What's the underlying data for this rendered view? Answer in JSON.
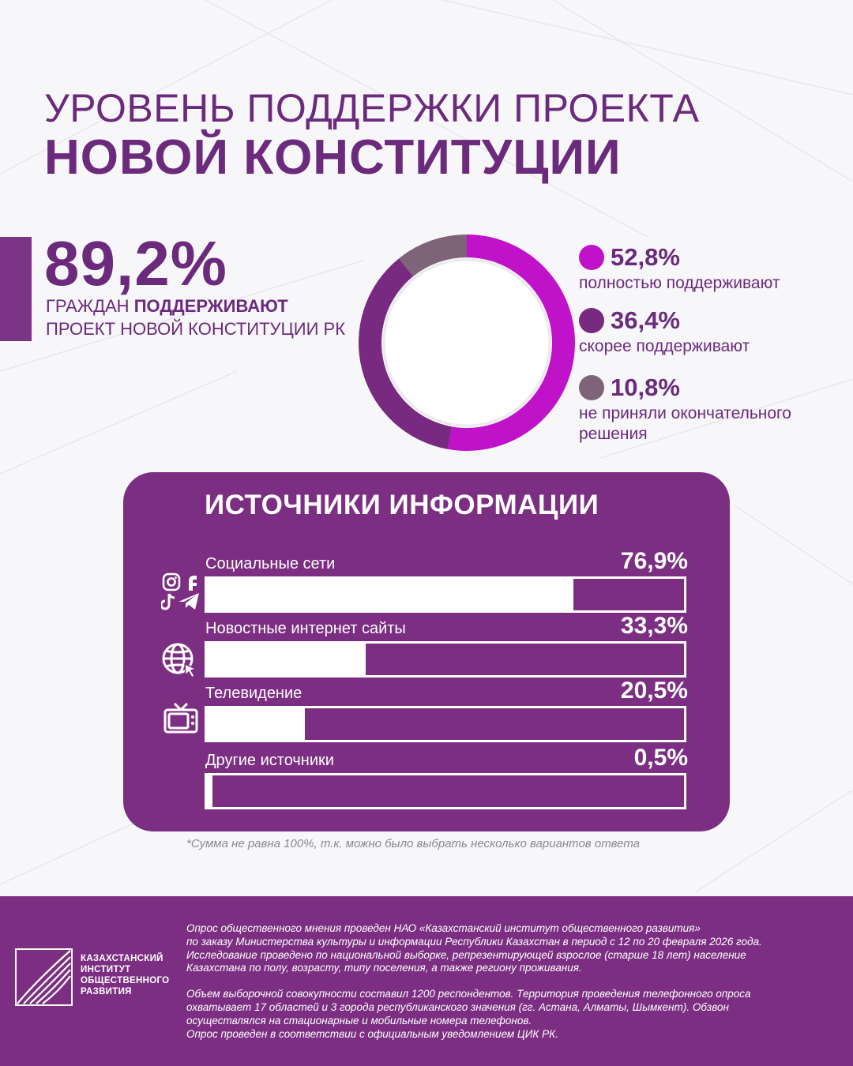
{
  "title": {
    "line1": "УРОВЕНЬ ПОДДЕРЖКИ ПРОЕКТА",
    "line2": "НОВОЙ КОНСТИТУЦИИ"
  },
  "headline": {
    "value": "89,2%",
    "subtitle_prefix": "ГРАЖДАН",
    "subtitle_bold": "ПОДДЕРЖИВАЮТ",
    "subtitle_line2": "ПРОЕКТ НОВОЙ КОНСТИТУЦИИ РК"
  },
  "sources": {
    "title": "ИСТОЧНИКИ ИНФОРМАЦИИ",
    "items": [
      {
        "label": "Социальные сети",
        "value": "76,9%",
        "icon": "social-media-icons"
      },
      {
        "label": "Новостные интернет сайты",
        "value": "33,3%",
        "icon": "globe-cursor-icon"
      },
      {
        "label": "Телевидение",
        "value": "20,5%",
        "icon": "tv-icon"
      },
      {
        "label": "Другие источники",
        "value": "0,5%",
        "icon": ""
      }
    ]
  },
  "footnote": "*Сумма не равна 100%, т.к. можно было выбрать несколько вариантов ответа",
  "footer": {
    "logo_lines": [
      "КАЗАХСТАНСКИЙ",
      "ИНСТИТУТ",
      "ОБЩЕСТВЕННОГО",
      "РАЗВИТИЯ"
    ],
    "paragraph1": [
      "Опрос общественного мнения проведен НАО «Казахстанский институт общественного развития»",
      "по заказу Министерства культуры и информации Республики Казахстан в период с 12 по 20 февраля 2026 года.",
      "Исследование проведено по национальной выборке, репрезентирующей взрослое (старше 18 лет) население",
      "Казахстана по полу, возрасту, типу поселения, а также региону проживания."
    ],
    "paragraph2": [
      "Объем выборочной совокупности составил 1200 респондентов. Территория проведения телефонного опроса",
      "охватывает 17 областей и 3 города республиканского значения (гг. Астана, Алматы, Шымкент). Обзвон",
      "осуществлялся на стационарные и мобильные номера телефонов.",
      "Опрос проведен в соответствии с официальным уведомлением ЦИК РК."
    ]
  },
  "colors": {
    "brand": "#7c2f82",
    "text": "#6b2a7c",
    "full_support": "#c012c9",
    "rather_support": "#782a80",
    "undecided": "#7d6479"
  },
  "chart_data": [
    {
      "type": "pie",
      "style": "donut",
      "labels": [
        "полностью поддерживают",
        "скорее поддерживают",
        "не приняли окончательного решения"
      ],
      "display_values": [
        "52,8%",
        "36,4%",
        "10,8%"
      ],
      "values": [
        52.8,
        36.4,
        10.8
      ],
      "colors": [
        "#c012c9",
        "#782a80",
        "#7d6479"
      ],
      "legend_position": "right"
    },
    {
      "type": "bar",
      "orientation": "horizontal",
      "title": "ИСТОЧНИКИ ИНФОРМАЦИИ",
      "categories": [
        "Социальные сети",
        "Новостные интернет сайты",
        "Телевидение",
        "Другие источники"
      ],
      "values": [
        76.9,
        33.3,
        20.5,
        0.5
      ],
      "unit": "%",
      "xlim": [
        0,
        100
      ]
    }
  ]
}
